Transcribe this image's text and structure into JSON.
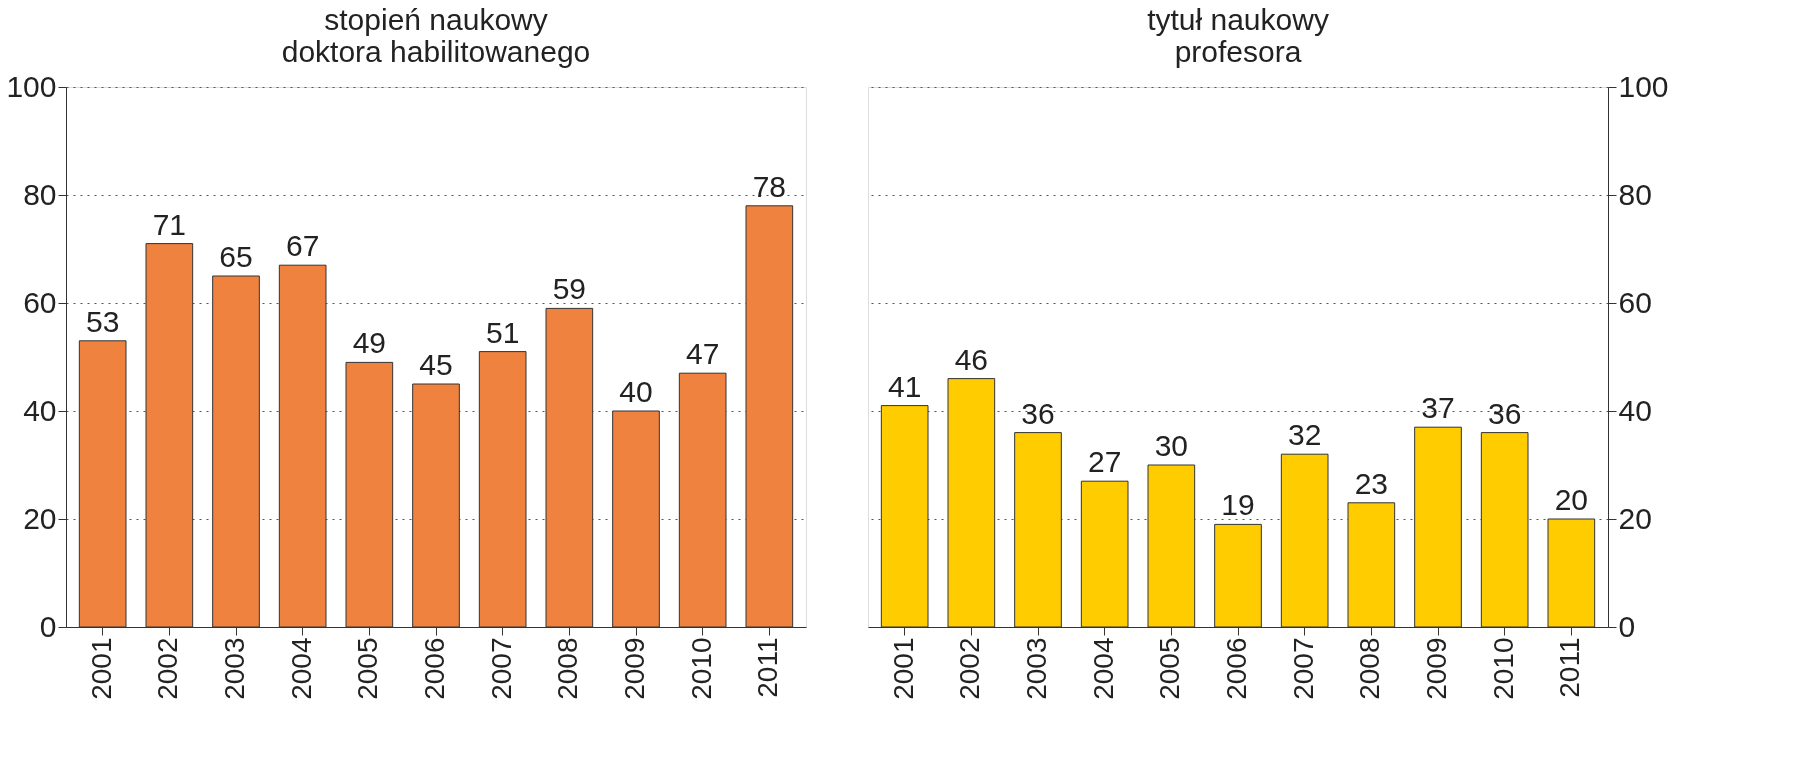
{
  "chart_data": [
    {
      "type": "bar",
      "title": [
        "stopień naukowy",
        "doktora habilitowanego"
      ],
      "categories": [
        "2001",
        "2002",
        "2003",
        "2004",
        "2005",
        "2006",
        "2007",
        "2008",
        "2009",
        "2010",
        "2011"
      ],
      "values": [
        53,
        71,
        65,
        67,
        49,
        45,
        51,
        59,
        40,
        47,
        78
      ],
      "color": "#f0823f",
      "ylim": [
        0,
        100
      ],
      "yticks": [
        0,
        20,
        40,
        60,
        80,
        100
      ],
      "grid": "y",
      "data_labels": true
    },
    {
      "type": "bar",
      "title": [
        "tytuł naukowy",
        "profesora"
      ],
      "categories": [
        "2001",
        "2002",
        "2003",
        "2004",
        "2005",
        "2006",
        "2007",
        "2008",
        "2009",
        "2010",
        "2011"
      ],
      "values": [
        41,
        46,
        36,
        27,
        30,
        19,
        32,
        23,
        37,
        36,
        20
      ],
      "color": "#ffcc00",
      "ylim": [
        0,
        100
      ],
      "yticks": [
        0,
        20,
        40,
        60,
        80,
        100
      ],
      "grid": "y",
      "data_labels": true
    }
  ]
}
